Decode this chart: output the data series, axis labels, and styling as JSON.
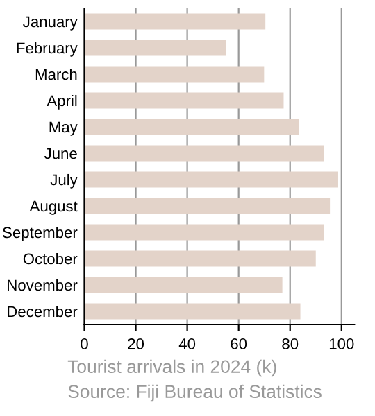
{
  "chart_data": {
    "type": "bar",
    "orientation": "horizontal",
    "categories": [
      "January",
      "February",
      "March",
      "April",
      "May",
      "June",
      "July",
      "August",
      "September",
      "October",
      "November",
      "December"
    ],
    "values": [
      70.4,
      55.2,
      69.9,
      77.5,
      83.5,
      93.3,
      98.7,
      95.5,
      93.3,
      90.0,
      77.0,
      84.0
    ],
    "color": "#e3d3c9",
    "xlim": [
      0,
      105
    ],
    "xticks": [
      0,
      20,
      40,
      60,
      80,
      100
    ],
    "grid": "x",
    "annotations": [
      "Tourist arrivals in 2024 (k)",
      "Source: Fiji Bureau of Statistics"
    ]
  }
}
